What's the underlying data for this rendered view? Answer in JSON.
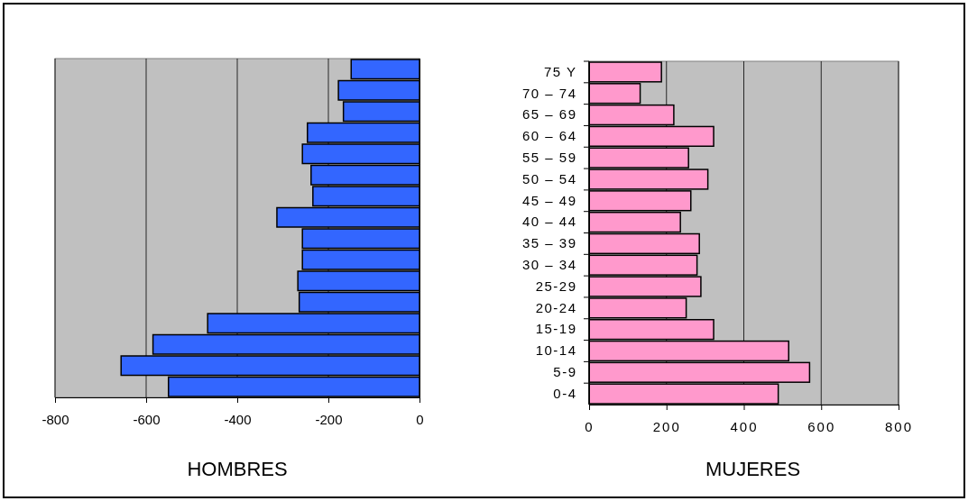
{
  "chart_data": [
    {
      "type": "bar",
      "orientation": "horizontal",
      "xlabel": "HOMBRES",
      "categories": [
        null,
        null,
        null,
        null,
        null,
        null,
        null,
        null,
        null,
        null,
        null,
        null,
        null,
        null,
        null,
        null
      ],
      "series": [
        {
          "color": "#3366ff",
          "values": [
            -150,
            -178,
            -167,
            -246,
            -257,
            -238,
            -234,
            -313,
            -257,
            -257,
            -267,
            -264,
            -465,
            -585,
            -655,
            -551
          ]
        }
      ],
      "xlim": [
        -800,
        0
      ],
      "xticks": [
        -800,
        -600,
        -400,
        -200,
        0
      ],
      "grid": "x",
      "tick_labels": "x"
    },
    {
      "type": "bar",
      "orientation": "horizontal",
      "xlabel": "MUJERES",
      "categories": [
        "75 Y",
        "70 – 74",
        "65 – 69",
        "60 – 64",
        "55 – 59",
        "50 – 54",
        "45 – 49",
        "40 – 44",
        "35 – 39",
        "30 – 34",
        "25-29",
        "20-24",
        "15-19",
        "10-14",
        "5-9",
        "0-4"
      ],
      "series": [
        {
          "color": "#ff99cc",
          "values": [
            187,
            132,
            219,
            322,
            257,
            307,
            263,
            236,
            285,
            279,
            289,
            251,
            322,
            516,
            570,
            489
          ]
        }
      ],
      "xlim": [
        0,
        800
      ],
      "xticks": [
        0,
        200,
        400,
        600,
        800
      ],
      "grid": "x"
    }
  ]
}
